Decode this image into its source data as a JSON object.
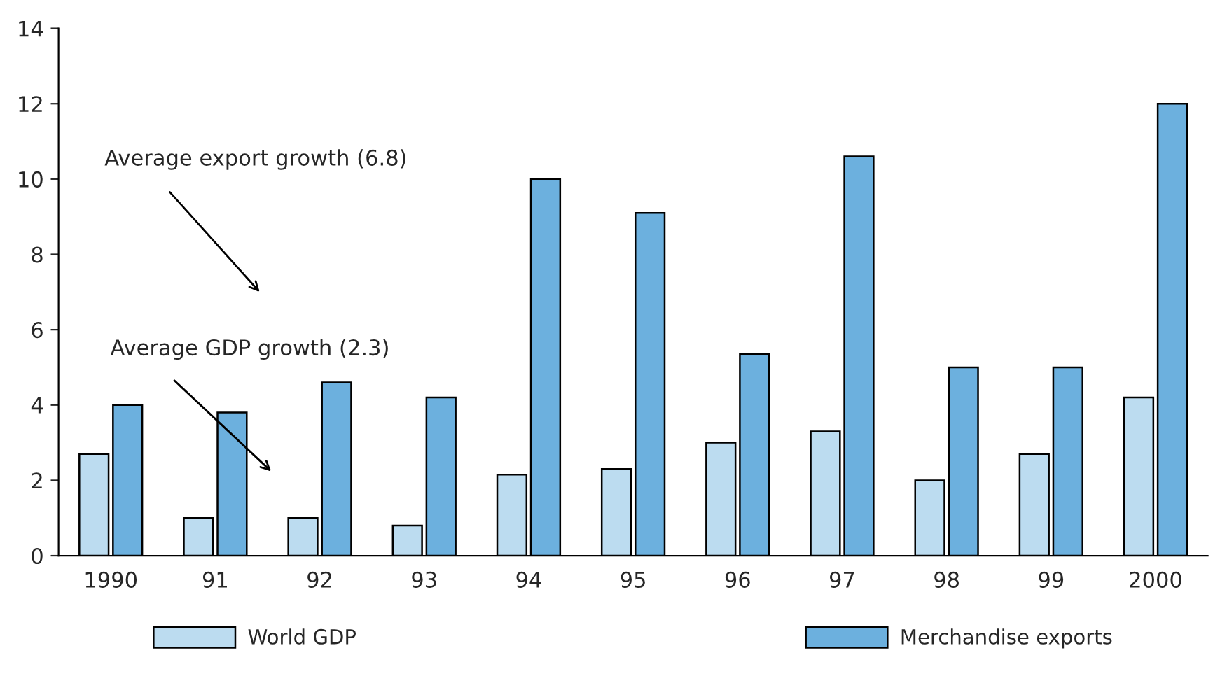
{
  "chart_data": {
    "type": "bar",
    "categories": [
      "1990",
      "91",
      "92",
      "93",
      "94",
      "95",
      "96",
      "97",
      "98",
      "99",
      "2000"
    ],
    "series": [
      {
        "name": "World GDP",
        "color": "#bcdcf0",
        "values": [
          2.7,
          1.0,
          1.0,
          0.8,
          2.15,
          2.3,
          3.0,
          3.3,
          2.0,
          2.7,
          4.2
        ]
      },
      {
        "name": "Merchandise exports",
        "color": "#6cb0de",
        "values": [
          4.0,
          3.8,
          4.6,
          4.2,
          10.0,
          9.1,
          5.35,
          10.6,
          5.0,
          5.0,
          12.0
        ]
      }
    ],
    "ylim": [
      0,
      14
    ],
    "yticks": [
      0,
      2,
      4,
      6,
      8,
      10,
      12,
      14
    ],
    "grid": false,
    "legend": "bottom",
    "annotations": [
      "Average export growth (6.8)",
      "Average GDP growth (2.3)"
    ]
  }
}
